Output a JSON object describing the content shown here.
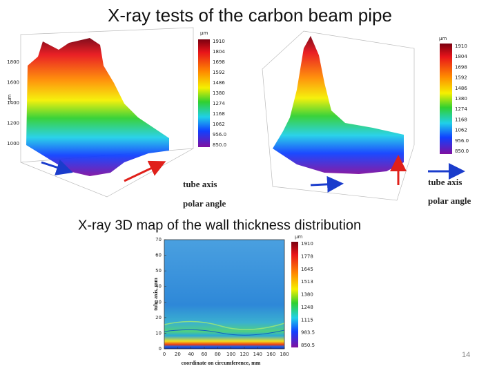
{
  "title": "X-ray tests of the carbon beam pipe",
  "left_plot": {
    "unit": "µm",
    "colorbar": [
      "1910",
      "1804",
      "1698",
      "1592",
      "1486",
      "1380",
      "1274",
      "1168",
      "1062",
      "956.0",
      "850.0"
    ],
    "z_ticks": [
      "1800",
      "1600",
      "1400",
      "1200",
      "1000"
    ],
    "tube_axis": "tube axis",
    "polar_angle": "polar angle"
  },
  "right_plot": {
    "unit": "µm",
    "colorbar": [
      "1910",
      "1804",
      "1698",
      "1592",
      "1486",
      "1380",
      "1274",
      "1168",
      "1062",
      "956.0",
      "850.0"
    ],
    "tube_axis": "tube axis",
    "polar_angle": "polar angle"
  },
  "subtitle": "X-ray 3D map of the wall thickness distribution",
  "map": {
    "unit": "µm",
    "ylabel": "tube axis, mm",
    "xlabel": "coordinate on circumference, mm",
    "yticks": [
      "0",
      "10",
      "20",
      "30",
      "40",
      "50",
      "60",
      "70"
    ],
    "xticks": [
      "0",
      "20",
      "40",
      "60",
      "80",
      "100",
      "120",
      "140",
      "160",
      "180"
    ],
    "colorbar": [
      "1910",
      "1778",
      "1645",
      "1513",
      "1380",
      "1248",
      "1115",
      "983.5",
      "850.5"
    ]
  },
  "page_number": "14"
}
